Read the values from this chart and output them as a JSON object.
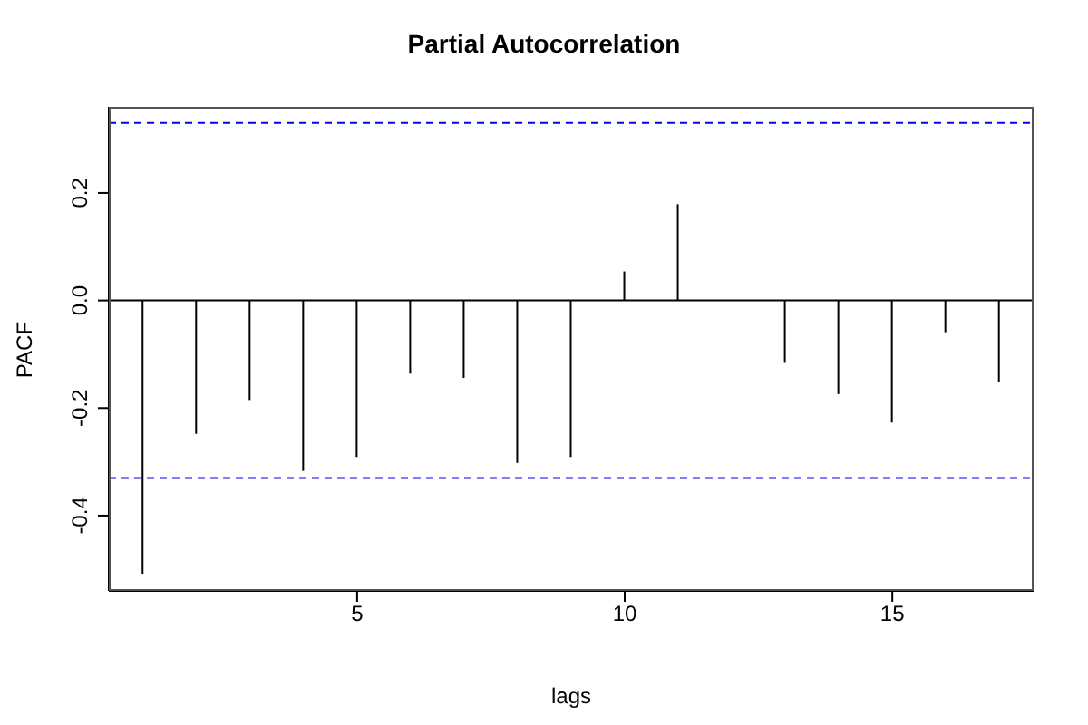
{
  "chart_data": {
    "type": "bar",
    "title": "Partial Autocorrelation",
    "xlabel": "lags",
    "ylabel": "PACF",
    "x": [
      1,
      2,
      3,
      4,
      5,
      6,
      7,
      8,
      9,
      10,
      11,
      12,
      13,
      14,
      15,
      16,
      17
    ],
    "values": [
      -0.508,
      -0.248,
      -0.185,
      -0.317,
      -0.291,
      -0.136,
      -0.144,
      -0.302,
      -0.291,
      0.054,
      0.179,
      0.0,
      -0.116,
      -0.174,
      -0.227,
      -0.059,
      -0.152
    ],
    "color": "#000000",
    "xlim": [
      0.36,
      17.64
    ],
    "xticks": [
      5,
      10,
      15
    ],
    "ylim": [
      -0.54,
      0.36
    ],
    "yticks": [
      -0.4,
      -0.2,
      {
        "value": 0,
        "label": "0.0"
      },
      0.2
    ],
    "ref_lines": [
      {
        "axis": "y",
        "value": 0.33,
        "color": "#0000ff",
        "line_style": "dashed"
      },
      {
        "axis": "y",
        "value": -0.33,
        "color": "#0000ff",
        "line_style": "dashed"
      },
      {
        "axis": "y",
        "value": 0,
        "color": "#000000",
        "line_style": "solid"
      }
    ],
    "grid": false
  }
}
